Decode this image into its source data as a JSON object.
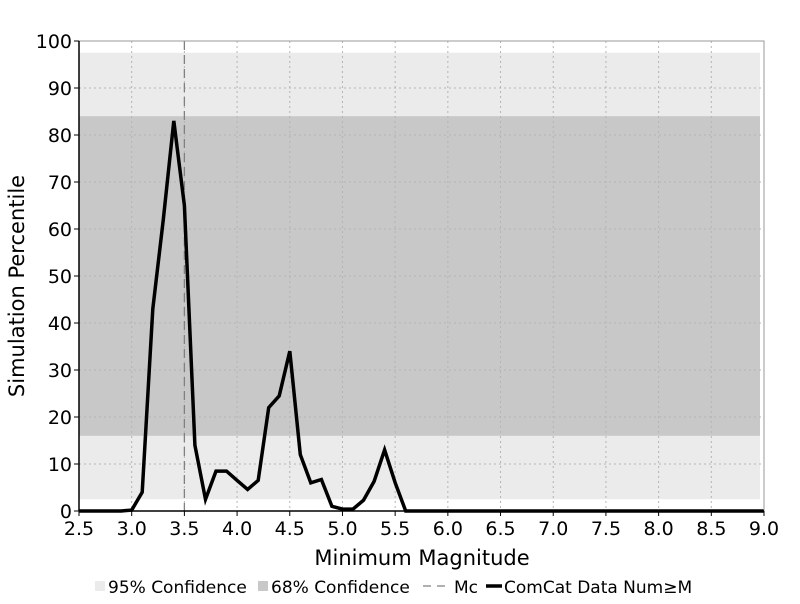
{
  "chart_data": {
    "type": "line",
    "title": "",
    "xlabel": "Minimum Magnitude",
    "ylabel": "Simulation Percentile",
    "xlim": [
      2.5,
      9.0
    ],
    "ylim": [
      0,
      100
    ],
    "x_ticks": [
      "2.5",
      "3.0",
      "3.5",
      "4.0",
      "4.5",
      "5.0",
      "5.5",
      "6.0",
      "6.5",
      "7.0",
      "7.5",
      "8.0",
      "8.5",
      "9.0"
    ],
    "y_ticks": [
      "0",
      "10",
      "20",
      "30",
      "40",
      "50",
      "60",
      "70",
      "80",
      "90",
      "100"
    ],
    "grid": true,
    "legend_position": "bottom",
    "bands": [
      {
        "name": "95% Confidence",
        "low": 2.5,
        "high": 97.5,
        "color": "#ebebeb"
      },
      {
        "name": "68% Confidence",
        "low": 16,
        "high": 84,
        "color": "#c8c8c8"
      }
    ],
    "reference_lines": [
      {
        "name": "Mc",
        "x": 3.5,
        "color": "#808080",
        "style": "dashed"
      }
    ],
    "series": [
      {
        "name": "ComCat Data Num≥M",
        "color": "#000000",
        "x": [
          2.5,
          2.6,
          2.7,
          2.8,
          2.9,
          3.0,
          3.1,
          3.2,
          3.3,
          3.4,
          3.5,
          3.6,
          3.7,
          3.8,
          3.9,
          4.0,
          4.1,
          4.2,
          4.3,
          4.4,
          4.5,
          4.6,
          4.7,
          4.8,
          4.9,
          5.0,
          5.1,
          5.2,
          5.3,
          5.4,
          5.5,
          5.6,
          5.7,
          5.8,
          5.9,
          6.0,
          6.5,
          7.0,
          7.5,
          8.0,
          8.5,
          9.0
        ],
        "y": [
          0,
          0,
          0,
          0,
          0,
          0.2,
          4,
          43,
          62,
          83,
          65,
          14,
          2.5,
          8.5,
          8.5,
          6.5,
          4.6,
          6.5,
          22,
          24.5,
          34,
          12,
          6,
          6.7,
          1,
          0.4,
          0.4,
          2.3,
          6.3,
          13,
          6,
          0,
          0,
          0,
          0,
          0,
          0,
          0,
          0,
          0,
          0,
          0
        ]
      }
    ]
  },
  "legend": {
    "items": [
      {
        "label": "95% Confidence",
        "kind": "band",
        "color": "#ebebeb"
      },
      {
        "label": "68% Confidence",
        "kind": "band",
        "color": "#c8c8c8"
      },
      {
        "label": "Mc",
        "kind": "dashed",
        "color": "#808080"
      },
      {
        "label": "ComCat Data Num≥M",
        "kind": "line",
        "color": "#000000"
      }
    ]
  }
}
